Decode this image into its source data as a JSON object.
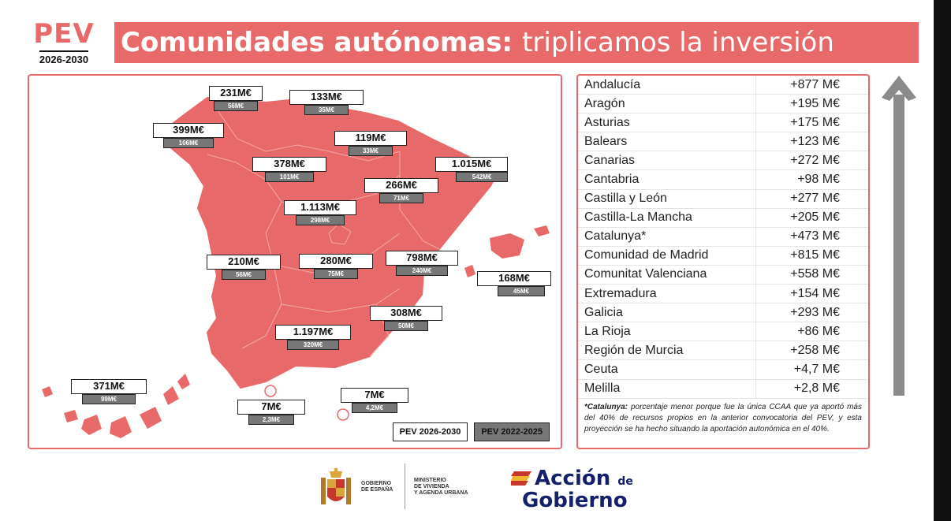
{
  "header": {
    "brand": "PEV",
    "years": "2026-2030",
    "title_bold": "Comunidades autónomas:",
    "title_light": "triplicamos la inversión"
  },
  "colors": {
    "accent": "#e8696a",
    "old_badge": "#777777",
    "arrow": "#8a8a8a",
    "brand_blue": "#14206b"
  },
  "map": {
    "labels": [
      {
        "region": "Asturias",
        "new": "231M€",
        "old": "56M€"
      },
      {
        "region": "Cantabria",
        "new": "133M€",
        "old": "35M€"
      },
      {
        "region": "Galicia",
        "new": "399M€",
        "old": "106M€"
      },
      {
        "region": "La Rioja",
        "new": "119M€",
        "old": "33M€"
      },
      {
        "region": "Castilla y León",
        "new": "378M€",
        "old": "101M€"
      },
      {
        "region": "Catalunya",
        "new": "1.015M€",
        "old": "542M€"
      },
      {
        "region": "Aragón",
        "new": "266M€",
        "old": "71M€"
      },
      {
        "region": "Comunidad de Madrid",
        "new": "1.113M€",
        "old": "298M€"
      },
      {
        "region": "Extremadura",
        "new": "210M€",
        "old": "56M€"
      },
      {
        "region": "Castilla-La Mancha",
        "new": "280M€",
        "old": "75M€"
      },
      {
        "region": "Comunitat Valenciana",
        "new": "798M€",
        "old": "240M€"
      },
      {
        "region": "Balears",
        "new": "168M€",
        "old": "45M€"
      },
      {
        "region": "Región de Murcia",
        "new": "308M€",
        "old": "50M€"
      },
      {
        "region": "Andalucía",
        "new": "1.197M€",
        "old": "320M€"
      },
      {
        "region": "Canarias",
        "new": "371M€",
        "old": "99M€"
      },
      {
        "region": "Ceuta",
        "new": "7M€",
        "old": "2,3M€"
      },
      {
        "region": "Melilla",
        "new": "7M€",
        "old": "4,2M€"
      }
    ],
    "legend": {
      "new": "PEV 2026-2030",
      "old": "PEV 2022-2025"
    }
  },
  "table": {
    "rows": [
      {
        "name": "Andalucía",
        "value": "+877 M€"
      },
      {
        "name": "Aragón",
        "value": "+195 M€"
      },
      {
        "name": "Asturias",
        "value": "+175 M€"
      },
      {
        "name": "Balears",
        "value": "+123 M€"
      },
      {
        "name": "Canarias",
        "value": "+272 M€"
      },
      {
        "name": "Cantabria",
        "value": "+98 M€"
      },
      {
        "name": "Castilla y León",
        "value": "+277 M€"
      },
      {
        "name": "Castilla-La Mancha",
        "value": "+205 M€"
      },
      {
        "name": "Catalunya*",
        "value": "+473 M€"
      },
      {
        "name": "Comunidad de Madrid",
        "value": "+815 M€"
      },
      {
        "name": "Comunitat Valenciana",
        "value": "+558 M€"
      },
      {
        "name": "Extremadura",
        "value": "+154 M€"
      },
      {
        "name": "Galicia",
        "value": "+293 M€"
      },
      {
        "name": "La Rioja",
        "value": "+86 M€"
      },
      {
        "name": "Región de Murcia",
        "value": "+258 M€"
      },
      {
        "name": "Ceuta",
        "value": "+4,7 M€"
      },
      {
        "name": "Melilla",
        "value": "+2,8 M€"
      }
    ],
    "note_bold": "*Catalunya:",
    "note_text": " porcentaje menor porque fue la única CCAA que ya aportó más del 40% de recursos propios en la anterior convocatoria del PEV, y esta proyección se ha hecho situando la aportación autonómica en el 40%."
  },
  "footer": {
    "gov_line1": "GOBIERNO",
    "gov_line2": "DE ESPAÑA",
    "min_line1": "MINISTERIO",
    "min_line2": "DE VIVIENDA",
    "min_line3": "Y AGENDA URBANA",
    "accion_word": "Acción",
    "accion_de": "de",
    "accion_gobierno": "Gobierno"
  }
}
